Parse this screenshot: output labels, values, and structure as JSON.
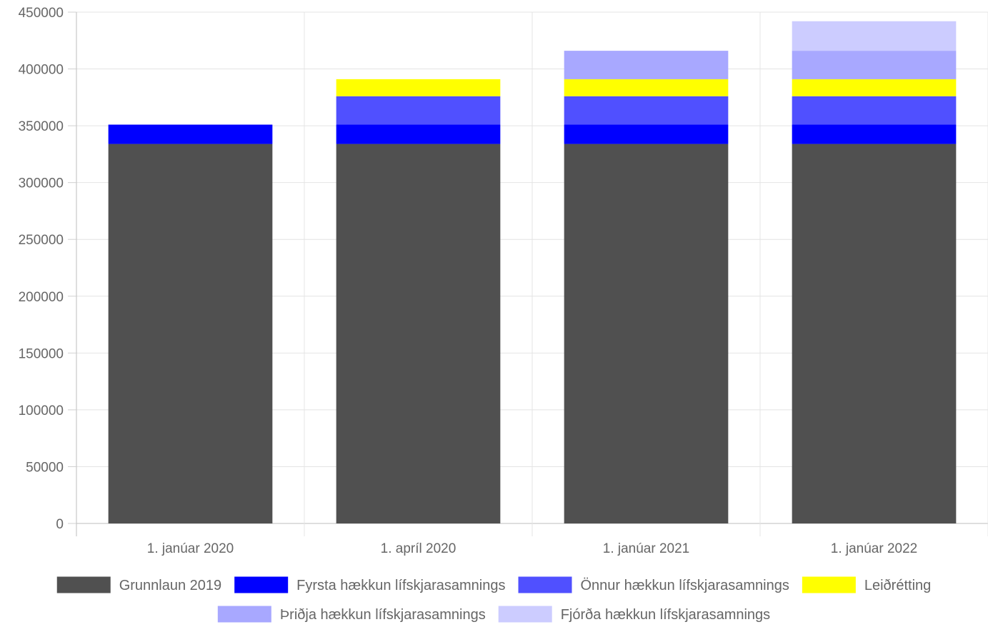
{
  "chart_data": {
    "type": "bar",
    "stacked": true,
    "title": "",
    "xlabel": "",
    "ylabel": "",
    "categories": [
      "1. janúar 2020",
      "1. apríl 2020",
      "1. janúar 2021",
      "1. janúar 2022"
    ],
    "ylim": [
      0,
      450000
    ],
    "yticks": [
      0,
      50000,
      100000,
      150000,
      200000,
      250000,
      300000,
      350000,
      400000,
      450000
    ],
    "grid": true,
    "legend_position": "bottom",
    "series": [
      {
        "name": "Grunnlaun 2019",
        "color": "#505050",
        "values": [
          334000,
          334000,
          334000,
          334000
        ]
      },
      {
        "name": "Fyrsta hækkun lífskjarasamnings",
        "color": "#0000ff",
        "values": [
          17000,
          17000,
          17000,
          17000
        ]
      },
      {
        "name": "Önnur hækkun lífskjarasamnings",
        "color": "#5050ff",
        "values": [
          0,
          25000,
          25000,
          25000
        ]
      },
      {
        "name": "Leiðrétting",
        "color": "#ffff00",
        "values": [
          0,
          15000,
          15000,
          15000
        ]
      },
      {
        "name": "Þriðja hækkun lífskjarasamnings",
        "color": "#a8a8ff",
        "values": [
          0,
          0,
          25000,
          25000
        ]
      },
      {
        "name": "Fjórða hækkun lífskjarasamnings",
        "color": "#ccccff",
        "values": [
          0,
          0,
          0,
          26000
        ]
      }
    ]
  }
}
